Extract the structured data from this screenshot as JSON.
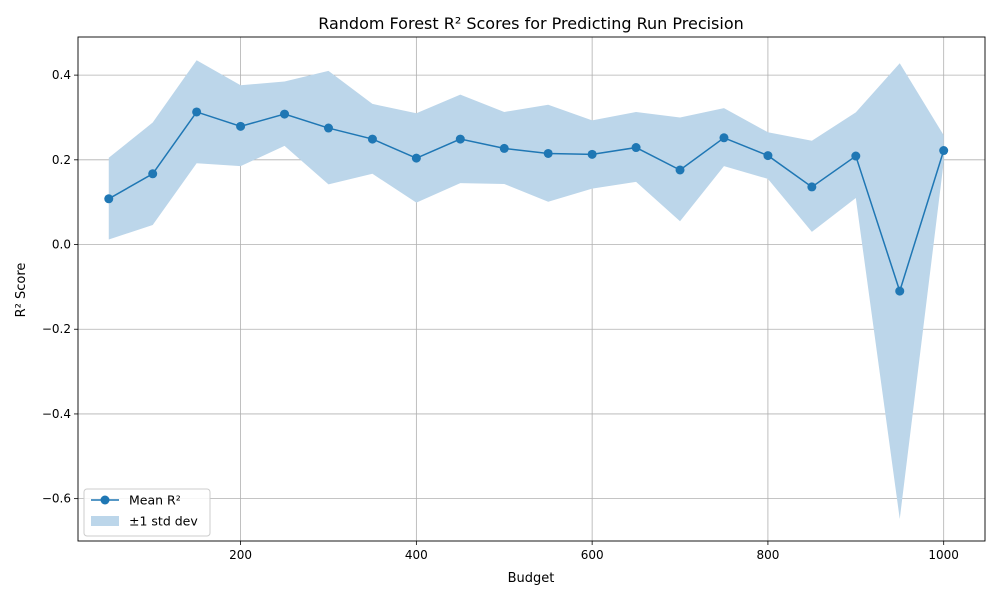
{
  "chart_data": {
    "type": "line",
    "title": "Random Forest R² Scores for Predicting Run Precision",
    "xlabel": "Budget",
    "ylabel": "R² Score",
    "xlim": [
      15,
      1047
    ],
    "ylim": [
      -0.7,
      0.49
    ],
    "xticks": [
      200,
      400,
      600,
      800,
      1000
    ],
    "yticks": [
      -0.6,
      -0.4,
      -0.2,
      0.0,
      0.2,
      0.4
    ],
    "ytick_labels": [
      "−0.6",
      "−0.4",
      "−0.2",
      "0.0",
      "0.2",
      "0.4"
    ],
    "grid": true,
    "legend_position": "lower-left",
    "colors": {
      "line": "#1f77b4",
      "band": "#bcd6ea"
    },
    "x": [
      50,
      100,
      150,
      200,
      250,
      300,
      350,
      400,
      450,
      500,
      550,
      600,
      650,
      700,
      750,
      800,
      850,
      900,
      950,
      1000
    ],
    "series": [
      {
        "name": "Mean R²",
        "values": [
          0.108,
          0.167,
          0.313,
          0.279,
          0.308,
          0.275,
          0.249,
          0.204,
          0.249,
          0.227,
          0.215,
          0.213,
          0.229,
          0.176,
          0.252,
          0.21,
          0.136,
          0.209,
          -0.11,
          0.222
        ]
      }
    ],
    "band": {
      "name": "±1 std dev",
      "lower": [
        0.012,
        0.046,
        0.192,
        0.185,
        0.233,
        0.142,
        0.167,
        0.099,
        0.145,
        0.143,
        0.101,
        0.132,
        0.148,
        0.055,
        0.185,
        0.155,
        0.03,
        0.11,
        -0.648,
        0.195
      ],
      "upper": [
        0.205,
        0.288,
        0.435,
        0.376,
        0.385,
        0.41,
        0.332,
        0.31,
        0.354,
        0.313,
        0.33,
        0.293,
        0.313,
        0.3,
        0.322,
        0.265,
        0.245,
        0.312,
        0.428,
        0.258
      ]
    }
  }
}
